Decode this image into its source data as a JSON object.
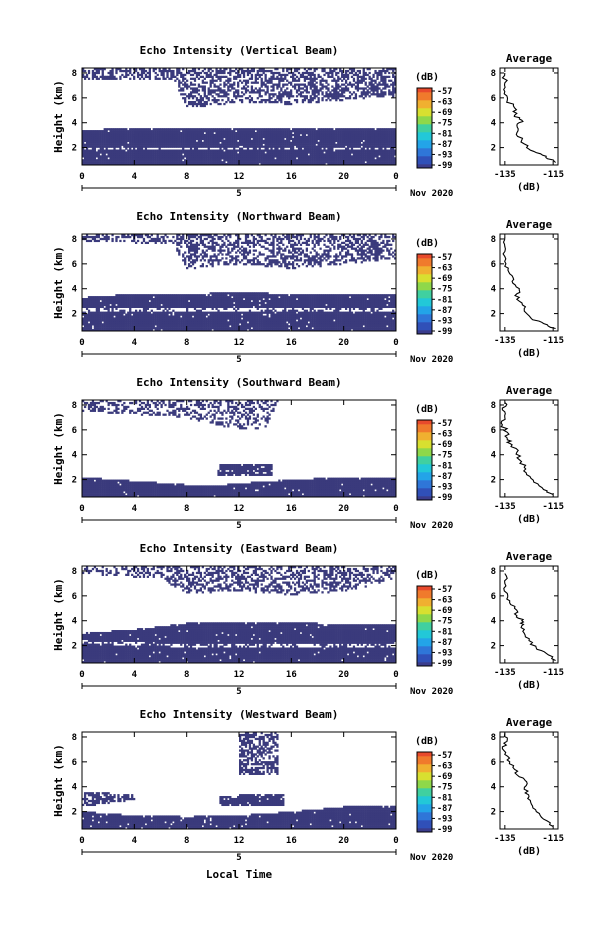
{
  "figure": {
    "xlabel": "Local Time"
  },
  "chart_data": [
    {
      "type": "heatmap",
      "title": "Echo Intensity (Vertical Beam)",
      "ylabel": "Height (km)",
      "xticks": [
        "0",
        "4",
        "8",
        "12",
        "16",
        "20",
        "0"
      ],
      "yticks": [
        "2",
        "4",
        "6",
        "8"
      ],
      "xlim": [
        0,
        24
      ],
      "ylim": [
        0.6,
        8.4
      ],
      "date_label": "5",
      "month_label": "Nov 2020",
      "colorbar": {
        "unit": "(dB)",
        "ticks": [
          "-57",
          "-63",
          "-69",
          "-75",
          "-81",
          "-87",
          "-93",
          "-99"
        ]
      },
      "echo_layers": [
        {
          "name": "lower",
          "bottom": [
            [
              0,
              0.6
            ],
            [
              24,
              0.6
            ]
          ],
          "top": [
            [
              0,
              3.4
            ],
            [
              4,
              3.6
            ],
            [
              8,
              3.5
            ],
            [
              12,
              3.6
            ],
            [
              16,
              3.6
            ],
            [
              20,
              3.5
            ],
            [
              24,
              3.5
            ]
          ],
          "gap": [
            [
              0,
              1.9
            ],
            [
              24,
              1.9
            ]
          ]
        },
        {
          "name": "upper",
          "bottom": [
            [
              0,
              7.5
            ],
            [
              7,
              7.4
            ],
            [
              8,
              5.2
            ],
            [
              12,
              5.6
            ],
            [
              16,
              5.5
            ],
            [
              20,
              5.8
            ],
            [
              22,
              6.0
            ],
            [
              24,
              6.0
            ]
          ],
          "top": [
            [
              0,
              8.4
            ],
            [
              24,
              8.4
            ]
          ],
          "density": 0.55
        }
      ],
      "profile": {
        "title": "Average",
        "xlabel": "(dB)",
        "xticks": [
          "-135",
          "-115"
        ],
        "xlim": [
          -137,
          -113
        ],
        "yticks": [
          "2",
          "4",
          "6",
          "8"
        ],
        "ylim": [
          0.6,
          8.4
        ],
        "points": [
          [
            -114,
            0.8
          ],
          [
            -118,
            1.2
          ],
          [
            -122,
            1.6
          ],
          [
            -126,
            2.0
          ],
          [
            -128,
            2.6
          ],
          [
            -130,
            3.2
          ],
          [
            -130,
            3.8
          ],
          [
            -128,
            4.2
          ],
          [
            -131,
            4.6
          ],
          [
            -131,
            5.2
          ],
          [
            -134,
            5.8
          ],
          [
            -135,
            6.5
          ],
          [
            -135,
            7.2
          ],
          [
            -135,
            8.0
          ]
        ]
      }
    },
    {
      "type": "heatmap",
      "title": "Echo Intensity (Northward Beam)",
      "ylabel": "Height (km)",
      "xticks": [
        "0",
        "4",
        "8",
        "12",
        "16",
        "20",
        "0"
      ],
      "yticks": [
        "2",
        "4",
        "6",
        "8"
      ],
      "xlim": [
        0,
        24
      ],
      "ylim": [
        0.6,
        8.4
      ],
      "date_label": "5",
      "month_label": "Nov 2020",
      "colorbar": {
        "unit": "(dB)",
        "ticks": [
          "-57",
          "-63",
          "-69",
          "-75",
          "-81",
          "-87",
          "-93",
          "-99"
        ]
      },
      "echo_layers": [
        {
          "name": "lower",
          "bottom": [
            [
              0,
              0.6
            ],
            [
              24,
              0.6
            ]
          ],
          "top": [
            [
              0,
              3.3
            ],
            [
              4,
              3.6
            ],
            [
              8,
              3.6
            ],
            [
              12,
              3.7
            ],
            [
              16,
              3.6
            ],
            [
              20,
              3.6
            ],
            [
              24,
              3.6
            ]
          ],
          "gap": [
            [
              0,
              2.3
            ],
            [
              24,
              2.3
            ]
          ]
        },
        {
          "name": "upper",
          "bottom": [
            [
              0,
              7.8
            ],
            [
              7,
              7.6
            ],
            [
              8,
              5.6
            ],
            [
              12,
              6.0
            ],
            [
              16,
              5.6
            ],
            [
              20,
              6.0
            ],
            [
              24,
              6.4
            ]
          ],
          "top": [
            [
              0,
              8.4
            ],
            [
              24,
              8.4
            ]
          ],
          "density": 0.5
        }
      ],
      "profile": {
        "title": "Average",
        "xlabel": "(dB)",
        "xticks": [
          "-135",
          "-115"
        ],
        "xlim": [
          -137,
          -113
        ],
        "yticks": [
          "2",
          "4",
          "6",
          "8"
        ],
        "ylim": [
          0.6,
          8.4
        ],
        "points": [
          [
            -114,
            0.8
          ],
          [
            -119,
            1.2
          ],
          [
            -124,
            1.6
          ],
          [
            -127,
            2.4
          ],
          [
            -129,
            3.0
          ],
          [
            -130,
            3.6
          ],
          [
            -129,
            4.0
          ],
          [
            -132,
            4.6
          ],
          [
            -133,
            5.2
          ],
          [
            -135,
            5.8
          ],
          [
            -135,
            6.6
          ],
          [
            -135,
            7.4
          ],
          [
            -135,
            8.1
          ]
        ]
      }
    },
    {
      "type": "heatmap",
      "title": "Echo Intensity (Southward Beam)",
      "ylabel": "Height (km)",
      "xticks": [
        "0",
        "4",
        "8",
        "12",
        "16",
        "20",
        "0"
      ],
      "yticks": [
        "2",
        "4",
        "6",
        "8"
      ],
      "xlim": [
        0,
        24
      ],
      "ylim": [
        0.6,
        8.4
      ],
      "date_label": "5",
      "month_label": "Nov 2020",
      "colorbar": {
        "unit": "(dB)",
        "ticks": [
          "-57",
          "-63",
          "-69",
          "-75",
          "-81",
          "-87",
          "-93",
          "-99"
        ]
      },
      "echo_layers": [
        {
          "name": "lower",
          "bottom": [
            [
              0,
              0.6
            ],
            [
              24,
              0.6
            ]
          ],
          "top": [
            [
              0,
              2.2
            ],
            [
              4,
              1.9
            ],
            [
              8,
              1.6
            ],
            [
              10,
              1.5
            ],
            [
              12,
              1.7
            ],
            [
              16,
              2.0
            ],
            [
              20,
              2.2
            ],
            [
              24,
              2.2
            ]
          ]
        },
        {
          "name": "mid",
          "bottom": [
            [
              10.4,
              2.3
            ],
            [
              14.5,
              2.3
            ]
          ],
          "top": [
            [
              10.4,
              3.3
            ],
            [
              14.5,
              3.3
            ]
          ],
          "density": 0.9
        },
        {
          "name": "upper",
          "bottom": [
            [
              1.5,
              7.4
            ],
            [
              8,
              7.0
            ],
            [
              11,
              6.2
            ],
            [
              14,
              6.0
            ],
            [
              15,
              8.4
            ]
          ],
          "top": [
            [
              0,
              8.4
            ],
            [
              16,
              8.4
            ]
          ],
          "density": 0.4
        }
      ],
      "profile": {
        "title": "Average",
        "xlabel": "(dB)",
        "xticks": [
          "-135",
          "-115"
        ],
        "xlim": [
          -137,
          -113
        ],
        "yticks": [
          "2",
          "4",
          "6",
          "8"
        ],
        "ylim": [
          0.6,
          8.4
        ],
        "points": [
          [
            -115,
            0.8
          ],
          [
            -119,
            1.2
          ],
          [
            -123,
            1.8
          ],
          [
            -126,
            2.4
          ],
          [
            -127,
            3.0
          ],
          [
            -129,
            3.6
          ],
          [
            -130,
            4.2
          ],
          [
            -132,
            4.8
          ],
          [
            -134,
            5.2
          ],
          [
            -134,
            5.8
          ],
          [
            -136,
            6.4
          ],
          [
            -135,
            7.0
          ],
          [
            -136,
            7.6
          ],
          [
            -135,
            8.2
          ]
        ]
      }
    },
    {
      "type": "heatmap",
      "title": "Echo Intensity (Eastward Beam)",
      "ylabel": "Height (km)",
      "xticks": [
        "0",
        "4",
        "8",
        "12",
        "16",
        "20",
        "0"
      ],
      "yticks": [
        "2",
        "4",
        "6",
        "8"
      ],
      "xlim": [
        0,
        24
      ],
      "ylim": [
        0.6,
        8.4
      ],
      "date_label": "5",
      "month_label": "Nov 2020",
      "colorbar": {
        "unit": "(dB)",
        "ticks": [
          "-57",
          "-63",
          "-69",
          "-75",
          "-81",
          "-87",
          "-93",
          "-99"
        ]
      },
      "echo_layers": [
        {
          "name": "lower",
          "bottom": [
            [
              0,
              0.6
            ],
            [
              24,
              0.6
            ]
          ],
          "top": [
            [
              0,
              3.0
            ],
            [
              4,
              3.3
            ],
            [
              8,
              3.8
            ],
            [
              12,
              3.9
            ],
            [
              16,
              3.9
            ],
            [
              20,
              3.7
            ],
            [
              24,
              3.7
            ]
          ],
          "gap": [
            [
              0,
              2.3
            ],
            [
              8,
              2.0
            ],
            [
              24,
              2.0
            ]
          ]
        },
        {
          "name": "upper",
          "bottom": [
            [
              0,
              7.8
            ],
            [
              6,
              7.4
            ],
            [
              8,
              6.2
            ],
            [
              12,
              6.4
            ],
            [
              16,
              6.0
            ],
            [
              20,
              6.4
            ],
            [
              22,
              6.8
            ],
            [
              24,
              7.4
            ]
          ],
          "top": [
            [
              0,
              8.4
            ],
            [
              24,
              8.4
            ]
          ],
          "density": 0.45
        }
      ],
      "profile": {
        "title": "Average",
        "xlabel": "(dB)",
        "xticks": [
          "-135",
          "-115"
        ],
        "xlim": [
          -137,
          -113
        ],
        "yticks": [
          "2",
          "4",
          "6",
          "8"
        ],
        "ylim": [
          0.6,
          8.4
        ],
        "points": [
          [
            -114,
            0.8
          ],
          [
            -118,
            1.4
          ],
          [
            -122,
            1.8
          ],
          [
            -125,
            2.4
          ],
          [
            -127,
            3.0
          ],
          [
            -128,
            3.6
          ],
          [
            -128,
            4.0
          ],
          [
            -130,
            4.4
          ],
          [
            -131,
            5.0
          ],
          [
            -133,
            5.6
          ],
          [
            -134,
            6.2
          ],
          [
            -135,
            7.0
          ],
          [
            -135,
            7.8
          ]
        ]
      }
    },
    {
      "type": "heatmap",
      "title": "Echo Intensity (Westward Beam)",
      "ylabel": "Height (km)",
      "xticks": [
        "0",
        "4",
        "8",
        "12",
        "16",
        "20",
        "0"
      ],
      "yticks": [
        "2",
        "4",
        "6",
        "8"
      ],
      "xlim": [
        0,
        24
      ],
      "ylim": [
        0.6,
        8.4
      ],
      "date_label": "5",
      "month_label": "Nov 2020",
      "colorbar": {
        "unit": "(dB)",
        "ticks": [
          "-57",
          "-63",
          "-69",
          "-75",
          "-81",
          "-87",
          "-93",
          "-99"
        ]
      },
      "echo_layers": [
        {
          "name": "lower",
          "bottom": [
            [
              0,
              0.6
            ],
            [
              24,
              0.6
            ]
          ],
          "top": [
            [
              0,
              2.0
            ],
            [
              4,
              1.7
            ],
            [
              8,
              1.6
            ],
            [
              12,
              1.7
            ],
            [
              16,
              2.0
            ],
            [
              20,
              2.4
            ],
            [
              24,
              2.4
            ]
          ]
        },
        {
          "name": "mid",
          "bottom": [
            [
              0,
              2.4
            ],
            [
              3,
              2.8
            ],
            [
              4,
              3.0
            ]
          ],
          "top": [
            [
              0,
              3.6
            ],
            [
              4,
              3.4
            ]
          ],
          "density": 0.7
        },
        {
          "name": "mid2",
          "bottom": [
            [
              10.5,
              2.4
            ],
            [
              15.5,
              2.4
            ]
          ],
          "top": [
            [
              10.5,
              3.3
            ],
            [
              15.5,
              3.4
            ]
          ],
          "density": 0.9
        },
        {
          "name": "upper",
          "bottom": [
            [
              12,
              5.0
            ],
            [
              15,
              5.0
            ]
          ],
          "top": [
            [
              12,
              8.4
            ],
            [
              15,
              8.4
            ]
          ],
          "density": 0.55
        }
      ],
      "profile": {
        "title": "Average",
        "xlabel": "(dB)",
        "xticks": [
          "-135",
          "-115"
        ],
        "xlim": [
          -137,
          -113
        ],
        "yticks": [
          "2",
          "4",
          "6",
          "8"
        ],
        "ylim": [
          0.6,
          8.4
        ],
        "points": [
          [
            -115,
            0.8
          ],
          [
            -119,
            1.4
          ],
          [
            -122,
            2.0
          ],
          [
            -124,
            2.6
          ],
          [
            -125,
            3.2
          ],
          [
            -127,
            3.8
          ],
          [
            -126,
            4.4
          ],
          [
            -129,
            4.8
          ],
          [
            -131,
            5.4
          ],
          [
            -133,
            6.0
          ],
          [
            -135,
            6.6
          ],
          [
            -136,
            7.2
          ],
          [
            -134,
            7.8
          ],
          [
            -135,
            8.3
          ]
        ]
      }
    }
  ]
}
